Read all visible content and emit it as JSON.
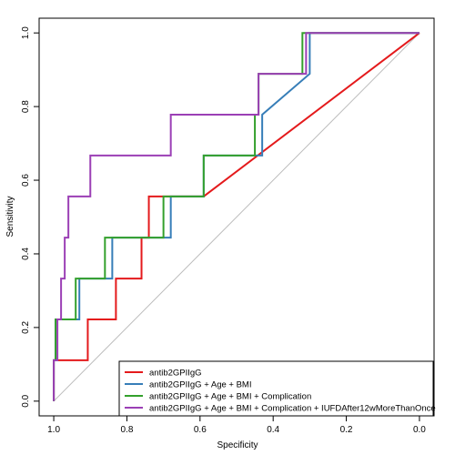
{
  "chart_data": {
    "type": "line",
    "xlabel": "Specificity",
    "ylabel": "Sensitivity",
    "xlim": [
      1.04,
      -0.04
    ],
    "ylim": [
      -0.04,
      1.04
    ],
    "x_reversed": true,
    "x_ticks": [
      1.0,
      0.8,
      0.6,
      0.4,
      0.2,
      0.0
    ],
    "x_tick_labels": [
      "1.0",
      "0.8",
      "0.6",
      "0.4",
      "0.2",
      "0.0"
    ],
    "y_ticks": [
      0.0,
      0.2,
      0.4,
      0.6,
      0.8,
      1.0
    ],
    "y_tick_labels": [
      "0.0",
      "0.2",
      "0.4",
      "0.6",
      "0.8",
      "1.0"
    ],
    "grid": false,
    "legend_position": "bottom-right",
    "reference_line": {
      "from": [
        1,
        0
      ],
      "to": [
        0,
        1
      ],
      "color": "#bbbbbb"
    },
    "series": [
      {
        "name": "antib2GPIIgG",
        "color": "#e41a1c",
        "x": [
          1.0,
          1.0,
          0.907,
          0.907,
          0.86,
          0.86,
          0.83,
          0.83,
          0.76,
          0.76,
          0.74,
          0.74,
          0.59,
          0.0
        ],
        "y": [
          0.0,
          0.111,
          0.111,
          0.222,
          0.222,
          0.222,
          0.222,
          0.333,
          0.333,
          0.444,
          0.444,
          0.556,
          0.556,
          1.0
        ]
      },
      {
        "name": "antib2GPIIgG + Age + BMI",
        "color": "#377eb8",
        "x": [
          1.0,
          1.0,
          0.995,
          0.995,
          0.93,
          0.93,
          0.84,
          0.84,
          0.68,
          0.68,
          0.59,
          0.59,
          0.43,
          0.43,
          0.3,
          0.3,
          0.0
        ],
        "y": [
          0.0,
          0.111,
          0.111,
          0.222,
          0.222,
          0.333,
          0.333,
          0.444,
          0.444,
          0.556,
          0.556,
          0.667,
          0.667,
          0.778,
          0.889,
          1.0,
          1.0
        ]
      },
      {
        "name": "antib2GPIIgG + Age + BMI + Complication",
        "color": "#33a02c",
        "x": [
          1.0,
          1.0,
          0.995,
          0.995,
          0.94,
          0.94,
          0.86,
          0.86,
          0.7,
          0.7,
          0.59,
          0.59,
          0.45,
          0.45,
          0.44,
          0.44,
          0.32,
          0.32,
          0.0
        ],
        "y": [
          0.0,
          0.111,
          0.111,
          0.222,
          0.222,
          0.333,
          0.333,
          0.444,
          0.444,
          0.556,
          0.556,
          0.667,
          0.667,
          0.778,
          0.778,
          0.889,
          0.889,
          1.0,
          1.0
        ]
      },
      {
        "name": "antib2GPIIgG + Age + BMI + Complication + IUFDAfter12wMoreThanOnce",
        "color": "#9b3fb5",
        "x": [
          1.0,
          1.0,
          0.99,
          0.99,
          0.98,
          0.98,
          0.97,
          0.97,
          0.96,
          0.96,
          0.95,
          0.95,
          0.9,
          0.9,
          0.68,
          0.68,
          0.44,
          0.44,
          0.31,
          0.31,
          0.0
        ],
        "y": [
          0.0,
          0.111,
          0.111,
          0.222,
          0.222,
          0.333,
          0.333,
          0.444,
          0.444,
          0.556,
          0.556,
          0.556,
          0.556,
          0.667,
          0.667,
          0.778,
          0.778,
          0.889,
          0.889,
          1.0,
          1.0
        ]
      }
    ]
  }
}
